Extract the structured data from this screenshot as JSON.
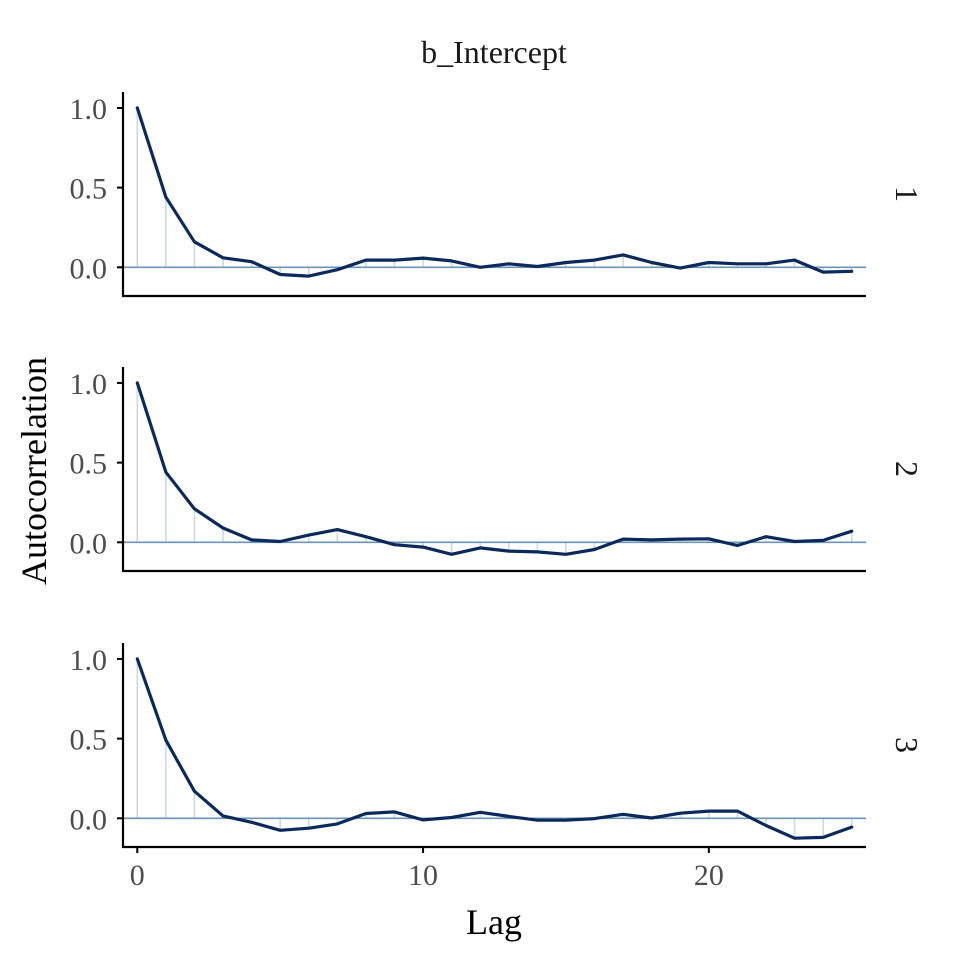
{
  "chart_data": {
    "type": "line",
    "title": "b_Intercept",
    "xlabel": "Lag",
    "ylabel": "Autocorrelation",
    "xlim": [
      -0.5,
      25.5
    ],
    "ylim": [
      -0.18,
      1.1
    ],
    "x_ticks": [
      0,
      10,
      20
    ],
    "y_ticks": [
      0.0,
      0.5,
      1.0
    ],
    "y_tick_labels": [
      "0.0",
      "0.5",
      "1.0"
    ],
    "grid": false,
    "legend": "none",
    "colors": {
      "line": "#0b2a5b",
      "stem": "#c9dbe6",
      "zero_line": "#6f93b3",
      "axis": "#000000",
      "tick_text": "#4d4d4d"
    },
    "lags": [
      0,
      1,
      2,
      3,
      4,
      5,
      6,
      7,
      8,
      9,
      10,
      11,
      12,
      13,
      14,
      15,
      16,
      17,
      18,
      19,
      20,
      21,
      22,
      23,
      24,
      25
    ],
    "panels": [
      {
        "name": "1",
        "values": [
          1.0,
          0.44,
          0.16,
          0.06,
          0.035,
          -0.045,
          -0.055,
          -0.015,
          0.045,
          0.045,
          0.058,
          0.04,
          0.0,
          0.022,
          0.005,
          0.03,
          0.045,
          0.078,
          0.03,
          -0.005,
          0.03,
          0.022,
          0.022,
          0.045,
          -0.03,
          -0.025
        ]
      },
      {
        "name": "2",
        "values": [
          1.0,
          0.44,
          0.21,
          0.09,
          0.015,
          0.005,
          0.045,
          0.08,
          0.035,
          -0.015,
          -0.03,
          -0.075,
          -0.035,
          -0.055,
          -0.06,
          -0.075,
          -0.045,
          0.02,
          0.015,
          0.02,
          0.022,
          -0.02,
          0.035,
          0.005,
          0.012,
          0.07
        ]
      },
      {
        "name": "3",
        "values": [
          1.0,
          0.49,
          0.17,
          0.015,
          -0.025,
          -0.075,
          -0.062,
          -0.035,
          0.03,
          0.04,
          -0.01,
          0.005,
          0.038,
          0.012,
          -0.012,
          -0.012,
          -0.002,
          0.025,
          0.002,
          0.032,
          0.045,
          0.045,
          -0.045,
          -0.125,
          -0.12,
          -0.055
        ]
      }
    ]
  }
}
